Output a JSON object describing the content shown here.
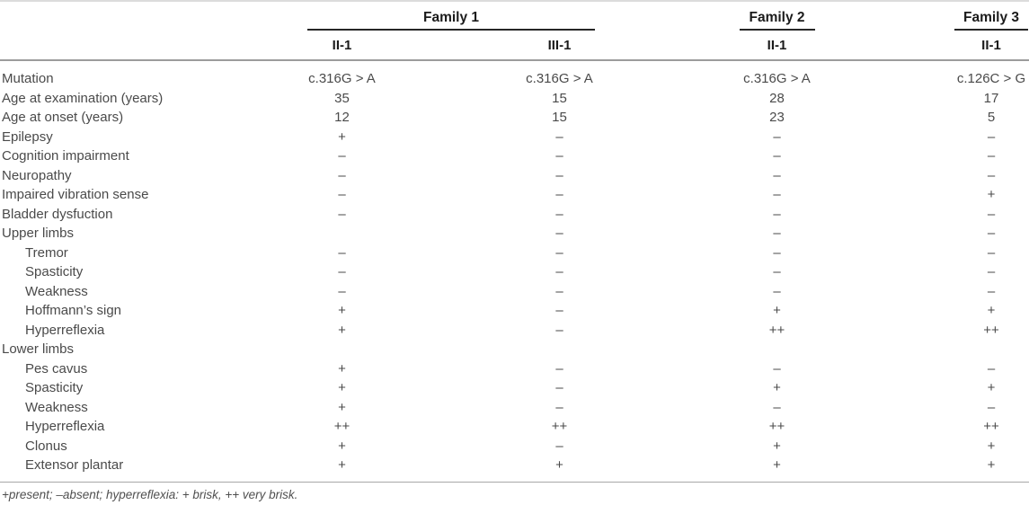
{
  "table": {
    "groups": [
      {
        "label": "Family 1",
        "span": 2
      },
      {
        "label": "Family 2",
        "span": 1
      },
      {
        "label": "Family 3",
        "span": 1
      }
    ],
    "subheaders": [
      "II-1",
      "III-1",
      "II-1",
      "II-1"
    ],
    "rows": [
      {
        "label": "Mutation",
        "indent": false,
        "values": [
          "c.316G > A",
          "c.316G > A",
          "c.316G > A",
          "c.126C > G"
        ]
      },
      {
        "label": "Age at examination (years)",
        "indent": false,
        "values": [
          "35",
          "15",
          "28",
          "17"
        ]
      },
      {
        "label": "Age at onset (years)",
        "indent": false,
        "values": [
          "12",
          "15",
          "23",
          "5"
        ]
      },
      {
        "label": "Epilepsy",
        "indent": false,
        "values": [
          "+",
          "–",
          "–",
          "–"
        ]
      },
      {
        "label": "Cognition impairment",
        "indent": false,
        "values": [
          "–",
          "–",
          "–",
          "–"
        ]
      },
      {
        "label": "Neuropathy",
        "indent": false,
        "values": [
          "–",
          "–",
          "–",
          "–"
        ]
      },
      {
        "label": "Impaired vibration sense",
        "indent": false,
        "values": [
          "–",
          "–",
          "–",
          "+"
        ]
      },
      {
        "label": "Bladder dysfuction",
        "indent": false,
        "values": [
          "–",
          "–",
          "–",
          "–"
        ]
      },
      {
        "label": "Upper limbs",
        "indent": false,
        "values": [
          "",
          "–",
          "–",
          "–"
        ]
      },
      {
        "label": "Tremor",
        "indent": true,
        "values": [
          "–",
          "–",
          "–",
          "–"
        ]
      },
      {
        "label": "Spasticity",
        "indent": true,
        "values": [
          "–",
          "–",
          "–",
          "–"
        ]
      },
      {
        "label": "Weakness",
        "indent": true,
        "values": [
          "–",
          "–",
          "–",
          "–"
        ]
      },
      {
        "label": "Hoffmann’s sign",
        "indent": true,
        "values": [
          "+",
          "–",
          "+",
          "+"
        ]
      },
      {
        "label": "Hyperreflexia",
        "indent": true,
        "values": [
          "+",
          "–",
          "++",
          "++"
        ]
      },
      {
        "label": "Lower limbs",
        "indent": false,
        "values": [
          "",
          "",
          "",
          ""
        ]
      },
      {
        "label": "Pes cavus",
        "indent": true,
        "values": [
          "+",
          "–",
          "–",
          "–"
        ]
      },
      {
        "label": "Spasticity",
        "indent": true,
        "values": [
          "+",
          "–",
          "+",
          "+"
        ]
      },
      {
        "label": "Weakness",
        "indent": true,
        "values": [
          "+",
          "–",
          "–",
          "–"
        ]
      },
      {
        "label": "Hyperreflexia",
        "indent": true,
        "values": [
          "++",
          "++",
          "++",
          "++"
        ]
      },
      {
        "label": "Clonus",
        "indent": true,
        "values": [
          "+",
          "–",
          "+",
          "+"
        ]
      },
      {
        "label": "Extensor plantar",
        "indent": true,
        "values": [
          "+",
          "+",
          "+",
          "+"
        ]
      }
    ]
  },
  "footnote": "+present; –absent; hyperreflexia: + brisk, ++ very brisk.",
  "colors": {
    "body_text": "#4a4a4a",
    "header_text": "#1b1b1b",
    "group_underline": "#262626",
    "header_rule": "#9c9c9c",
    "top_rule": "#dcdcdc",
    "footnote_rule": "#a8a8a8"
  }
}
